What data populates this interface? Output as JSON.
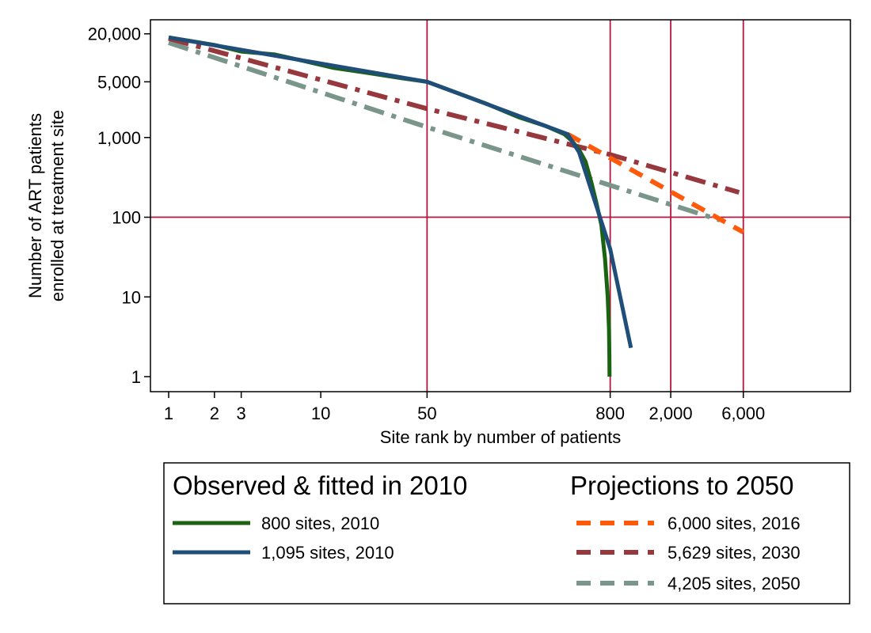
{
  "chart_data": {
    "type": "line",
    "xscale": "log",
    "yscale": "log",
    "xlabel": "Site rank by number of patients",
    "ylabel": [
      "Number of ART patients",
      "enrolled at treatment site"
    ],
    "xlim": [
      0.9,
      30000
    ],
    "ylim": [
      0.7,
      30000
    ],
    "x_ticks": [
      {
        "value": 1,
        "label": "1"
      },
      {
        "value": 2,
        "label": "2"
      },
      {
        "value": 3,
        "label": "3"
      },
      {
        "value": 10,
        "label": "10"
      },
      {
        "value": 50,
        "label": "50"
      },
      {
        "value": 800,
        "label": "800"
      },
      {
        "value": 2000,
        "label": "2,000"
      },
      {
        "value": 6000,
        "label": "6,000"
      }
    ],
    "y_ticks": [
      {
        "value": 1,
        "label": "1"
      },
      {
        "value": 10,
        "label": "10"
      },
      {
        "value": 100,
        "label": "100"
      },
      {
        "value": 1000,
        "label": "1,000"
      },
      {
        "value": 5000,
        "label": "5,000"
      },
      {
        "value": 20000,
        "label": "20,000"
      }
    ],
    "reference_lines": {
      "x": [
        50,
        800,
        2000,
        6000
      ],
      "y": [
        100
      ]
    },
    "reference_color": "#b5163f",
    "legend_groups": [
      {
        "heading": "Observed & fitted in 2010",
        "items": [
          0,
          1
        ]
      },
      {
        "heading": "Projections to 2050",
        "items": [
          2,
          3,
          4
        ]
      }
    ],
    "series": [
      {
        "name": "800 sites, 2010",
        "color": "#1a6311",
        "dash": "solid",
        "points": [
          [
            1,
            18000
          ],
          [
            2,
            14500
          ],
          [
            3,
            12000
          ],
          [
            5,
            11000
          ],
          [
            8,
            9000
          ],
          [
            12,
            7500
          ],
          [
            20,
            6500
          ],
          [
            35,
            5500
          ],
          [
            50,
            5000
          ],
          [
            80,
            3600
          ],
          [
            120,
            2700
          ],
          [
            200,
            1800
          ],
          [
            300,
            1400
          ],
          [
            400,
            1100
          ],
          [
            450,
            900
          ],
          [
            500,
            700
          ],
          [
            550,
            500
          ],
          [
            600,
            280
          ],
          [
            650,
            150
          ],
          [
            700,
            80
          ],
          [
            740,
            30
          ],
          [
            770,
            10
          ],
          [
            785,
            4
          ],
          [
            790,
            1.8
          ],
          [
            792,
            1
          ]
        ]
      },
      {
        "name": "1,095 sites, 2010",
        "color": "#1f4e79",
        "dash": "solid",
        "points": [
          [
            1,
            18000
          ],
          [
            50,
            5000
          ],
          [
            420,
            1100
          ],
          [
            500,
            650
          ],
          [
            800,
            40
          ],
          [
            1095,
            2.3
          ]
        ]
      },
      {
        "name": "6,000 sites, 2016",
        "color": "#ff5a0a",
        "dash": "dash",
        "points": [
          [
            420,
            1100
          ],
          [
            6000,
            65
          ]
        ]
      },
      {
        "name": "5,629 sites, 2030",
        "color": "#96383e",
        "dash": "dashdot",
        "points": [
          [
            1,
            17500
          ],
          [
            50,
            2300
          ],
          [
            800,
            610
          ],
          [
            5629,
            205
          ]
        ]
      },
      {
        "name": "4,205 sites, 2050",
        "color": "#7a958a",
        "dash": "dashdot",
        "points": [
          [
            1,
            15500
          ],
          [
            50,
            1350
          ],
          [
            4205,
            92
          ]
        ]
      }
    ]
  }
}
